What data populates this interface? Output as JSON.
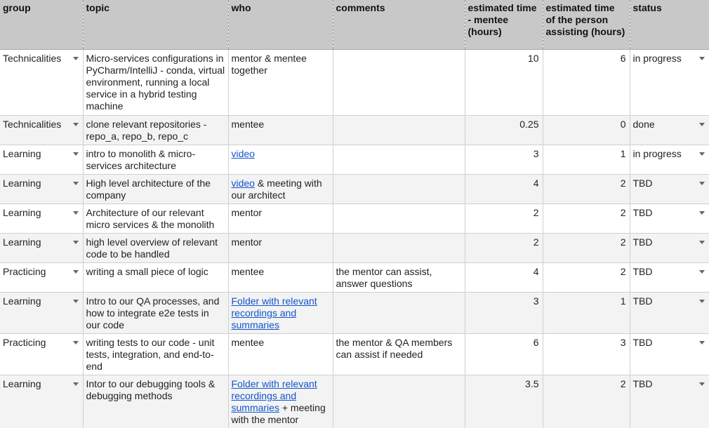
{
  "headers": {
    "group": "group",
    "topic": "topic",
    "who": "who",
    "comments": "comments",
    "est_mentee": "estimated time - mentee (hours)",
    "est_assist": "estimated time of the person assisting (hours)",
    "status": "status"
  },
  "rows": [
    {
      "group": "Technicalities",
      "topic": "Micro-services configurations in PyCharm/IntelliJ - conda, virtual environment, running a local service in a hybrid testing machine",
      "who": {
        "link": "",
        "text": "mentor & mentee together"
      },
      "comments": "",
      "est_mentee": "10",
      "est_assist": "6",
      "status": "in progress"
    },
    {
      "group": "Technicalities",
      "topic": "clone relevant repositories - repo_a, repo_b, repo_c",
      "who": {
        "link": "",
        "text": "mentee"
      },
      "comments": "",
      "est_mentee": "0.25",
      "est_assist": "0",
      "status": "done"
    },
    {
      "group": "Learning",
      "topic": "intro to monolith & micro-services architecture",
      "who": {
        "link": "video",
        "text": ""
      },
      "comments": "",
      "est_mentee": "3",
      "est_assist": "1",
      "status": "in progress"
    },
    {
      "group": "Learning",
      "topic": "High level architecture of the company",
      "who": {
        "link": "video",
        "text": " & meeting with our architect"
      },
      "comments": "",
      "est_mentee": "4",
      "est_assist": "2",
      "status": "TBD"
    },
    {
      "group": "Learning",
      "topic": "Architecture of our relevant micro services & the monolith",
      "who": {
        "link": "",
        "text": "mentor"
      },
      "comments": "",
      "est_mentee": "2",
      "est_assist": "2",
      "status": "TBD"
    },
    {
      "group": "Learning",
      "topic": "high level overview of relevant code to be handled",
      "who": {
        "link": "",
        "text": "mentor"
      },
      "comments": "",
      "est_mentee": "2",
      "est_assist": "2",
      "status": "TBD"
    },
    {
      "group": "Practicing",
      "topic": "writing a small piece of logic",
      "who": {
        "link": "",
        "text": "mentee"
      },
      "comments": "the mentor can assist, answer questions",
      "est_mentee": "4",
      "est_assist": "2",
      "status": "TBD"
    },
    {
      "group": "Learning",
      "topic": "Intro to our QA processes, and how to integrate e2e tests in our code",
      "who": {
        "link": "Folder with relevant recordings and summaries",
        "text": ""
      },
      "comments": "",
      "est_mentee": "3",
      "est_assist": "1",
      "status": "TBD"
    },
    {
      "group": "Practicing",
      "topic": "writing tests to our code - unit tests, integration, and end-to-end",
      "who": {
        "link": "",
        "text": "mentee"
      },
      "comments": "the mentor & QA members can assist if needed",
      "est_mentee": "6",
      "est_assist": "3",
      "status": "TBD"
    },
    {
      "group": "Learning",
      "topic": "Intor to our debugging tools & debugging methods",
      "who": {
        "link": "Folder with relevant recordings and summaries",
        "text": " + meeting with the mentor"
      },
      "comments": "",
      "est_mentee": "3.5",
      "est_assist": "2",
      "status": "TBD"
    }
  ]
}
